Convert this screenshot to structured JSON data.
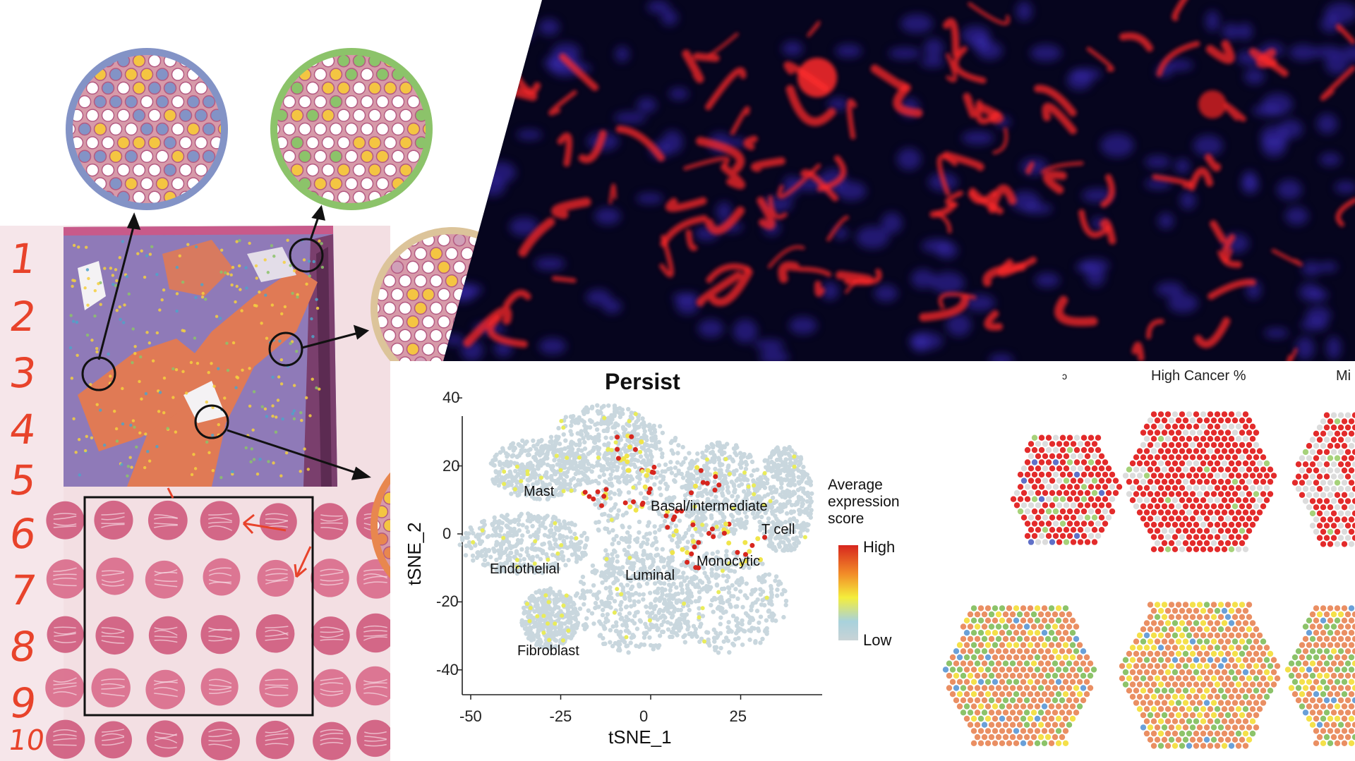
{
  "row_numbers": [
    "1",
    "2",
    "3",
    "4",
    "5",
    "6",
    "7",
    "8",
    "9",
    "10"
  ],
  "tsne_panel": {
    "title": "Persist",
    "xlabel": "tSNE_1",
    "ylabel": "tSNE_2",
    "x_ticks": [
      "-50",
      "-25",
      "0",
      "25"
    ],
    "y_ticks": [
      "40",
      "20",
      "0",
      "-20",
      "-40"
    ],
    "cluster_labels": [
      "Mast",
      "Basal/intermediate",
      "T cell",
      "Endothelial",
      "Monocytic",
      "Luminal",
      "Fibroblast"
    ],
    "legend_title_lines": [
      "Average",
      "expression",
      "score"
    ],
    "legend_high": "High",
    "legend_low": "Low"
  },
  "spatial_panel": {
    "title_left_fragment": "ɔ",
    "title_center": "High Cancer %",
    "title_right_fragment": "Mi"
  },
  "chart_data": {
    "type": "scatter",
    "title": "Persist",
    "xlabel": "tSNE_1",
    "ylabel": "tSNE_2",
    "xlim": [
      -50,
      45
    ],
    "ylim": [
      -42,
      42
    ],
    "x_ticks": [
      -50,
      -25,
      0,
      25
    ],
    "y_ticks": [
      40,
      20,
      0,
      -20,
      -40
    ],
    "grid": false,
    "legend": "right",
    "colorbar": {
      "title": "Average expression score",
      "max_label": "High",
      "min_label": "Low"
    },
    "clusters": [
      {
        "name": "Mast",
        "center": [
          -31,
          19
        ]
      },
      {
        "name": "Basal/intermediate",
        "center": [
          18,
          16
        ]
      },
      {
        "name": "T cell",
        "center": [
          36,
          8
        ]
      },
      {
        "name": "Endothelial",
        "center": [
          -34,
          -3
        ]
      },
      {
        "name": "Monocytic",
        "center": [
          23,
          0
        ]
      },
      {
        "name": "Luminal",
        "center": [
          0,
          -5
        ]
      },
      {
        "name": "Fibroblast",
        "center": [
          -28,
          -27
        ]
      }
    ]
  },
  "colors": {
    "row_number_red": "#e8432b",
    "tissue_purple": "#8f7ab8",
    "tissue_orange": "#e07a55",
    "he_pink": "#d9607f",
    "fluor_red": "#ff2a2a",
    "fluor_blue": "#3a2bb8",
    "cluster_grey": "#c9d7de",
    "high_red": "#d7261e",
    "spot_orange": "#ea8f63",
    "spot_green": "#8cc36a",
    "spot_yellow": "#f4d03f",
    "spot_blue": "#5060c0"
  }
}
